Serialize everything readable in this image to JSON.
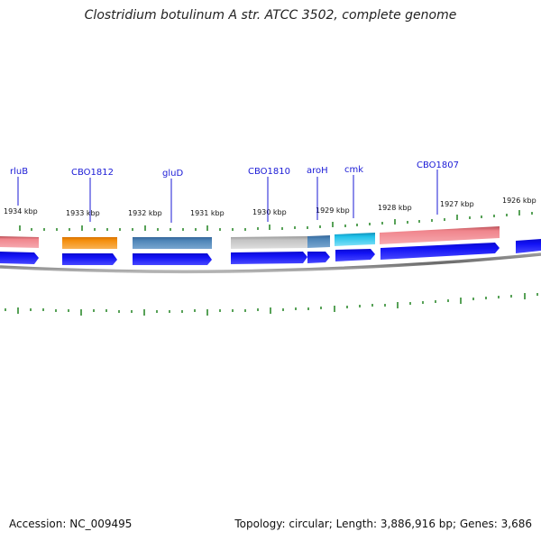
{
  "title": "Clostridium botulinum A str. ATCC 3502, complete genome",
  "accession": "Accession: NC_009495",
  "summary": "Topology: circular; Length: 3,886,916 bp; Genes: 3,686",
  "ticks": [
    {
      "label": "1934 kbp"
    },
    {
      "label": "1933 kbp"
    },
    {
      "label": "1932 kbp"
    },
    {
      "label": "1931 kbp"
    },
    {
      "label": "1930 kbp"
    },
    {
      "label": "1929 kbp"
    },
    {
      "label": "1928 kbp"
    },
    {
      "label": "1927 kbp"
    },
    {
      "label": "1926 kbp"
    }
  ],
  "gene_labels": [
    "rluB",
    "CBO1812",
    "gluD",
    "CBO1810",
    "aroH",
    "cmk",
    "CBO1807"
  ],
  "colors": {
    "cds_strand": "#1010ee",
    "backbone": "#707070",
    "tick": "#2e8b2e",
    "label": "#1a1ad6",
    "gene_red": "#f0858c",
    "gene_orange": "#f5900f",
    "gene_steelblue": "#4f86b8",
    "gene_gray": "#c4c4c4",
    "gene_cyan": "#22c2ea"
  }
}
